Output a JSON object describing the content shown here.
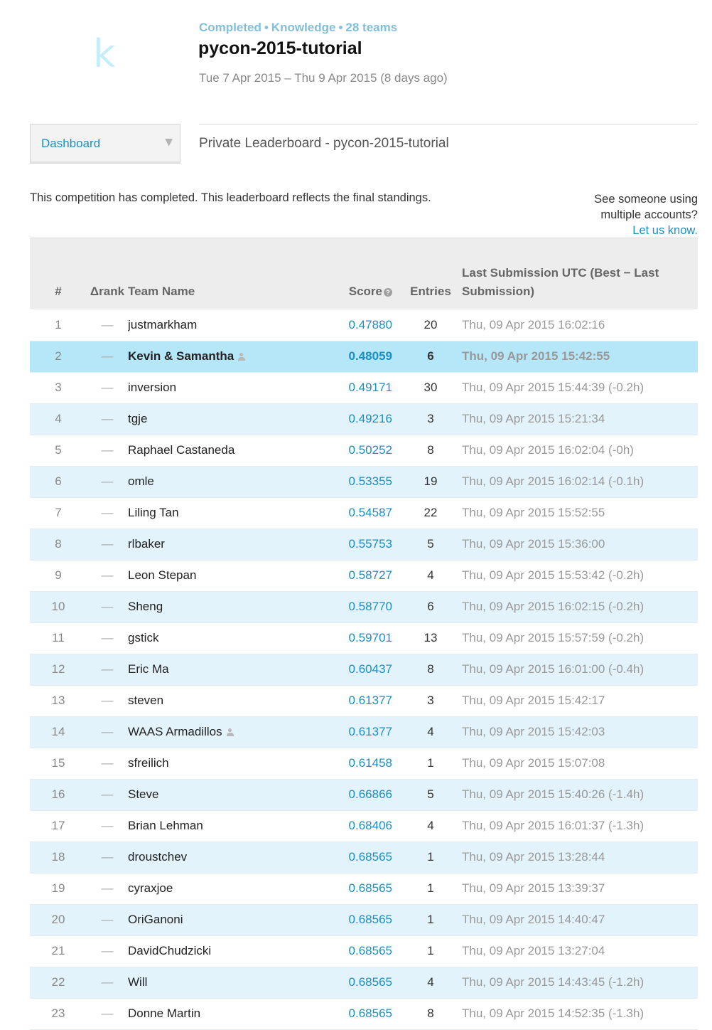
{
  "logo": {
    "letter": "k"
  },
  "competition": {
    "status": "Completed",
    "category": "Knowledge",
    "teams": "28 teams",
    "separator": "•",
    "title": "pycon-2015-tutorial",
    "dates": "Tue 7 Apr 2015 – Thu 9 Apr 2015 (8 days ago)"
  },
  "nav": {
    "dropdown_label": "Dashboard",
    "dropdown_arrow": "▼",
    "page_heading": "Private Leaderboard - pycon-2015-tutorial"
  },
  "notice": "This competition has completed. This leaderboard reflects the final standings.",
  "report": {
    "line1": "See someone using",
    "line2": "multiple accounts?",
    "link": "Let us know."
  },
  "table": {
    "headers": {
      "rank": "#",
      "delta": "Δrank",
      "team": "Team Name",
      "score": "Score",
      "score_help": "?",
      "entries": "Entries",
      "last": "Last Submission UTC (Best − Last Submission)"
    },
    "rows": [
      {
        "rank": "1",
        "delta": "—",
        "team": "justmarkham",
        "score": "0.47880",
        "entries": "20",
        "last": "Thu, 09 Apr 2015 16:02:16",
        "team_icon": false,
        "highlight": false
      },
      {
        "rank": "2",
        "delta": "—",
        "team": "Kevin & Samantha",
        "score": "0.48059",
        "entries": "6",
        "last": "Thu, 09 Apr 2015 15:42:55",
        "team_icon": true,
        "highlight": true
      },
      {
        "rank": "3",
        "delta": "—",
        "team": "inversion",
        "score": "0.49171",
        "entries": "30",
        "last": "Thu, 09 Apr 2015 15:44:39 (-0.2h)",
        "team_icon": false,
        "highlight": false
      },
      {
        "rank": "4",
        "delta": "—",
        "team": "tgje",
        "score": "0.49216",
        "entries": "3",
        "last": "Thu, 09 Apr 2015 15:21:34",
        "team_icon": false,
        "highlight": false
      },
      {
        "rank": "5",
        "delta": "—",
        "team": "Raphael Castaneda",
        "score": "0.50252",
        "entries": "8",
        "last": "Thu, 09 Apr 2015 16:02:04 (-0h)",
        "team_icon": false,
        "highlight": false
      },
      {
        "rank": "6",
        "delta": "—",
        "team": "omle",
        "score": "0.53355",
        "entries": "19",
        "last": "Thu, 09 Apr 2015 16:02:14 (-0.1h)",
        "team_icon": false,
        "highlight": false
      },
      {
        "rank": "7",
        "delta": "—",
        "team": "Liling Tan",
        "score": "0.54587",
        "entries": "22",
        "last": "Thu, 09 Apr 2015 15:52:55",
        "team_icon": false,
        "highlight": false
      },
      {
        "rank": "8",
        "delta": "—",
        "team": "rlbaker",
        "score": "0.55753",
        "entries": "5",
        "last": "Thu, 09 Apr 2015 15:36:00",
        "team_icon": false,
        "highlight": false
      },
      {
        "rank": "9",
        "delta": "—",
        "team": "Leon Stepan",
        "score": "0.58727",
        "entries": "4",
        "last": "Thu, 09 Apr 2015 15:53:42 (-0.2h)",
        "team_icon": false,
        "highlight": false
      },
      {
        "rank": "10",
        "delta": "—",
        "team": "Sheng",
        "score": "0.58770",
        "entries": "6",
        "last": "Thu, 09 Apr 2015 16:02:15 (-0.2h)",
        "team_icon": false,
        "highlight": false
      },
      {
        "rank": "11",
        "delta": "—",
        "team": "gstick",
        "score": "0.59701",
        "entries": "13",
        "last": "Thu, 09 Apr 2015 15:57:59 (-0.2h)",
        "team_icon": false,
        "highlight": false
      },
      {
        "rank": "12",
        "delta": "—",
        "team": "Eric Ma",
        "score": "0.60437",
        "entries": "8",
        "last": "Thu, 09 Apr 2015 16:01:00 (-0.4h)",
        "team_icon": false,
        "highlight": false
      },
      {
        "rank": "13",
        "delta": "—",
        "team": "steven",
        "score": "0.61377",
        "entries": "3",
        "last": "Thu, 09 Apr 2015 15:42:17",
        "team_icon": false,
        "highlight": false
      },
      {
        "rank": "14",
        "delta": "—",
        "team": "WAAS Armadillos",
        "score": "0.61377",
        "entries": "4",
        "last": "Thu, 09 Apr 2015 15:42:03",
        "team_icon": true,
        "highlight": false
      },
      {
        "rank": "15",
        "delta": "—",
        "team": "sfreilich",
        "score": "0.61458",
        "entries": "1",
        "last": "Thu, 09 Apr 2015 15:07:08",
        "team_icon": false,
        "highlight": false
      },
      {
        "rank": "16",
        "delta": "—",
        "team": "Steve",
        "score": "0.66866",
        "entries": "5",
        "last": "Thu, 09 Apr 2015 15:40:26 (-1.4h)",
        "team_icon": false,
        "highlight": false
      },
      {
        "rank": "17",
        "delta": "—",
        "team": "Brian Lehman",
        "score": "0.68406",
        "entries": "4",
        "last": "Thu, 09 Apr 2015 16:01:37 (-1.3h)",
        "team_icon": false,
        "highlight": false
      },
      {
        "rank": "18",
        "delta": "—",
        "team": "droustchev",
        "score": "0.68565",
        "entries": "1",
        "last": "Thu, 09 Apr 2015 13:28:44",
        "team_icon": false,
        "highlight": false
      },
      {
        "rank": "19",
        "delta": "—",
        "team": "cyraxjoe",
        "score": "0.68565",
        "entries": "1",
        "last": "Thu, 09 Apr 2015 13:39:37",
        "team_icon": false,
        "highlight": false
      },
      {
        "rank": "20",
        "delta": "—",
        "team": "OriGanoni",
        "score": "0.68565",
        "entries": "1",
        "last": "Thu, 09 Apr 2015 14:40:47",
        "team_icon": false,
        "highlight": false
      },
      {
        "rank": "21",
        "delta": "—",
        "team": "DavidChudzicki",
        "score": "0.68565",
        "entries": "1",
        "last": "Thu, 09 Apr 2015 13:27:04",
        "team_icon": false,
        "highlight": false
      },
      {
        "rank": "22",
        "delta": "—",
        "team": "Will",
        "score": "0.68565",
        "entries": "4",
        "last": "Thu, 09 Apr 2015 14:43:45 (-1.2h)",
        "team_icon": false,
        "highlight": false
      },
      {
        "rank": "23",
        "delta": "—",
        "team": "Donne Martin",
        "score": "0.68565",
        "entries": "8",
        "last": "Thu, 09 Apr 2015 14:52:35 (-1.3h)",
        "team_icon": false,
        "highlight": false
      }
    ]
  }
}
